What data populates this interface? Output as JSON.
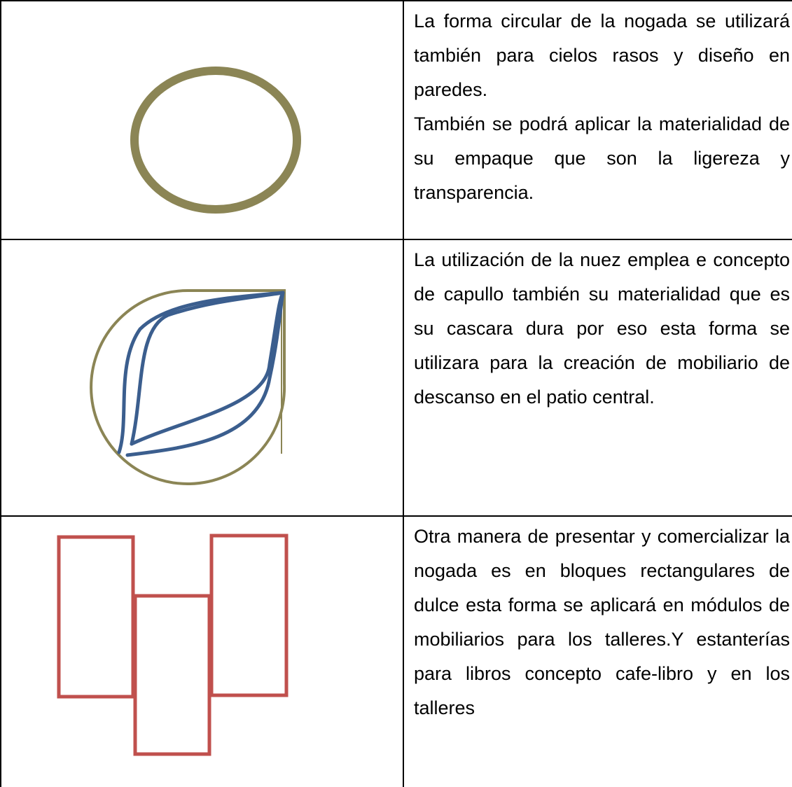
{
  "table": {
    "rows": [
      {
        "text": [
          "La forma circular de la nogada se utilizará también para cielos rasos y diseño en paredes.",
          "También se podrá aplicar la materialidad de su empaque que son la ligereza y transparencia."
        ]
      },
      {
        "text": [
          "La utilización de la nuez emplea e concepto de capullo también su materialidad que es su cascara dura por eso esta forma se utilizara para la creación de mobiliario de descanso en el patio central."
        ]
      },
      {
        "text": [
          "Otra manera de presentar y comercializar la nogada es en bloques rectangulares de dulce esta forma se aplicará en módulos de mobiliarios para los talleres.Y estanterías para libros concepto cafe-libro y en los talleres"
        ]
      }
    ]
  }
}
